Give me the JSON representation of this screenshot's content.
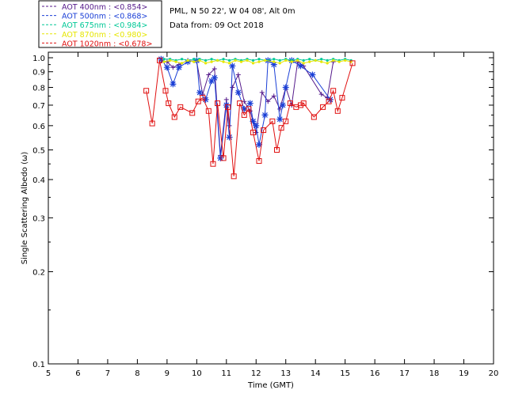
{
  "info": {
    "site": "PML, N 50 22', W 04 08', Alt 0m",
    "date": "Data from: 09 Oct 2018"
  },
  "chart_data": {
    "type": "scatter",
    "title": "",
    "xlabel": "Time (GMT)",
    "ylabel": "Single Scattering Albedo (ω)",
    "xlim": [
      5,
      20
    ],
    "ylim": [
      0.1,
      1.0
    ],
    "yscale": "log",
    "grid": false,
    "legend_position": "top-left",
    "x_ticks": [
      "5",
      "6",
      "7",
      "8",
      "9",
      "10",
      "11",
      "12",
      "13",
      "14",
      "15",
      "16",
      "17",
      "18",
      "19",
      "20"
    ],
    "y_ticks": [
      {
        "v": 1.0,
        "label": "1.0"
      },
      {
        "v": 0.9,
        "label": "0.9"
      },
      {
        "v": 0.8,
        "label": "0.8"
      },
      {
        "v": 0.7,
        "label": "0.7"
      },
      {
        "v": 0.6,
        "label": "0.6"
      },
      {
        "v": 0.5,
        "label": "0.5"
      },
      {
        "v": 0.4,
        "label": "0.4"
      },
      {
        "v": 0.3,
        "label": "0.3"
      },
      {
        "v": 0.2,
        "label": "0.2"
      },
      {
        "v": 0.1,
        "label": "0.1"
      }
    ],
    "series": [
      {
        "name": "AOT  400nm : <0.854>",
        "color": "#551a8b",
        "marker": "plus",
        "x": [
          8.8,
          9.0,
          9.2,
          9.4,
          9.7,
          10.0,
          10.2,
          10.4,
          10.6,
          10.8,
          11.0,
          11.1,
          11.2,
          11.4,
          11.6,
          11.8,
          12.0,
          12.2,
          12.4,
          12.6,
          12.8,
          13.0,
          13.2,
          13.4,
          13.6,
          14.2,
          14.4,
          14.6
        ],
        "y": [
          0.98,
          0.97,
          0.93,
          0.95,
          0.98,
          0.97,
          0.76,
          0.88,
          0.92,
          0.48,
          0.73,
          0.6,
          0.8,
          0.88,
          0.72,
          0.67,
          0.57,
          0.77,
          0.72,
          0.75,
          0.68,
          0.8,
          0.7,
          0.97,
          0.94,
          0.76,
          0.74,
          0.97
        ]
      },
      {
        "name": "AOT  500nm : <0.868>",
        "color": "#1a3fd6",
        "marker": "asterisk",
        "x": [
          8.8,
          9.0,
          9.2,
          9.4,
          9.7,
          10.0,
          10.1,
          10.3,
          10.5,
          10.6,
          10.8,
          11.0,
          11.1,
          11.2,
          11.4,
          11.6,
          11.8,
          11.9,
          12.0,
          12.1,
          12.3,
          12.4,
          12.6,
          12.8,
          12.9,
          13.0,
          13.2,
          13.5,
          13.9,
          14.5
        ],
        "y": [
          0.99,
          0.93,
          0.82,
          0.93,
          0.97,
          0.98,
          0.77,
          0.73,
          0.84,
          0.86,
          0.47,
          0.7,
          0.55,
          0.94,
          0.77,
          0.68,
          0.71,
          0.62,
          0.6,
          0.52,
          0.65,
          0.98,
          0.95,
          0.63,
          0.7,
          0.8,
          0.98,
          0.94,
          0.88,
          0.73
        ]
      },
      {
        "name": "AOT  675nm : <0.984>",
        "color": "#00c896",
        "marker": "dot",
        "x": [
          8.9,
          9.1,
          9.3,
          9.5,
          9.7,
          9.9,
          10.1,
          10.3,
          10.5,
          10.7,
          10.9,
          11.1,
          11.3,
          11.5,
          11.7,
          11.9,
          12.1,
          12.3,
          12.6,
          12.8,
          13.0,
          13.2,
          13.4,
          13.6,
          13.8,
          14.0,
          14.2,
          14.4,
          14.6,
          14.8,
          15.0,
          15.2
        ],
        "y": [
          0.99,
          0.99,
          0.98,
          0.99,
          0.98,
          0.99,
          0.99,
          0.98,
          0.99,
          0.98,
          0.99,
          0.98,
          0.99,
          0.98,
          0.99,
          0.98,
          0.99,
          0.98,
          0.99,
          0.98,
          0.99,
          0.98,
          0.99,
          0.98,
          0.99,
          0.98,
          0.99,
          0.98,
          0.99,
          0.98,
          0.99,
          0.98
        ]
      },
      {
        "name": "AOT  870nm : <0.980>",
        "color": "#e6e600",
        "marker": "dot",
        "x": [
          8.9,
          9.1,
          9.3,
          9.5,
          9.7,
          9.9,
          10.1,
          10.3,
          10.5,
          10.7,
          10.9,
          11.1,
          11.3,
          11.5,
          11.7,
          11.9,
          12.1,
          12.3,
          12.6,
          12.8,
          13.0,
          13.2,
          13.4,
          13.6,
          13.8,
          14.0,
          14.2,
          14.4,
          14.6,
          14.8,
          15.0,
          15.2
        ],
        "y": [
          0.97,
          0.98,
          0.97,
          0.96,
          0.98,
          0.97,
          0.98,
          0.96,
          0.97,
          0.98,
          0.97,
          0.96,
          0.98,
          0.97,
          0.98,
          0.96,
          0.97,
          0.98,
          0.97,
          0.96,
          0.98,
          0.97,
          0.98,
          0.96,
          0.97,
          0.98,
          0.97,
          0.96,
          0.98,
          0.97,
          0.98,
          0.97
        ]
      },
      {
        "name": "AOT 1020nm : <0.678>",
        "color": "#e01010",
        "marker": "square",
        "x": [
          8.3,
          8.5,
          8.75,
          8.95,
          9.05,
          9.25,
          9.45,
          9.85,
          10.05,
          10.2,
          10.4,
          10.55,
          10.7,
          10.9,
          11.05,
          11.25,
          11.45,
          11.6,
          11.75,
          11.9,
          12.1,
          12.25,
          12.55,
          12.7,
          12.85,
          13.0,
          13.15,
          13.35,
          13.5,
          13.6,
          13.95,
          14.25,
          14.45,
          14.6,
          14.75,
          14.9,
          15.25
        ],
        "y": [
          0.78,
          0.61,
          0.98,
          0.78,
          0.71,
          0.64,
          0.69,
          0.66,
          0.72,
          0.74,
          0.67,
          0.45,
          0.71,
          0.47,
          0.69,
          0.41,
          0.71,
          0.65,
          0.68,
          0.57,
          0.46,
          0.58,
          0.62,
          0.5,
          0.59,
          0.62,
          0.71,
          0.69,
          0.7,
          0.71,
          0.64,
          0.69,
          0.72,
          0.78,
          0.67,
          0.74,
          0.96
        ]
      }
    ]
  }
}
